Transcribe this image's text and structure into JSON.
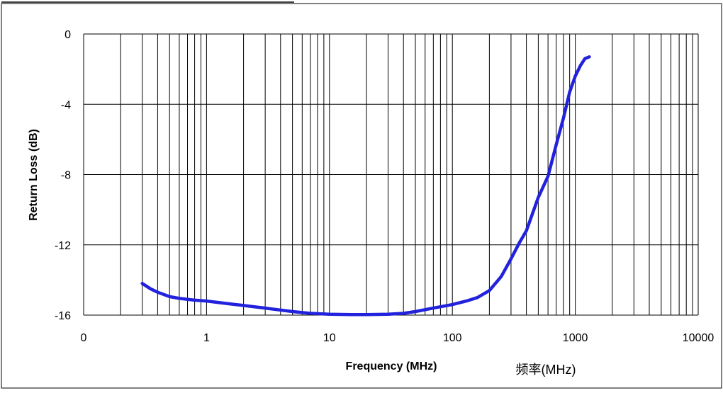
{
  "chart_data": {
    "type": "line",
    "title": "",
    "xlabel": "Frequency (MHz)",
    "ylabel": "Return Loss (dB)",
    "annotation": "频率(MHz)",
    "x_scale": "log",
    "xlim": [
      0.1,
      10000
    ],
    "ylim": [
      -16,
      0
    ],
    "x_tick_labels": [
      "0",
      "1",
      "10",
      "100",
      "1000",
      "10000"
    ],
    "y_tick_labels": [
      "0",
      "-4",
      "-8",
      "-12",
      "-16"
    ],
    "y_ticks": [
      0,
      -4,
      -8,
      -12,
      -16
    ],
    "grid": true,
    "legend": "none",
    "series": [
      {
        "color": "#2222dd",
        "x": [
          0.3,
          0.35,
          0.4,
          0.5,
          0.6,
          0.8,
          1,
          1.5,
          2,
          3,
          5,
          7,
          10,
          15,
          20,
          30,
          40,
          50,
          70,
          100,
          130,
          160,
          200,
          250,
          300,
          350,
          400,
          500,
          600,
          700,
          800,
          900,
          1000,
          1100,
          1200,
          1300
        ],
        "y": [
          -14.2,
          -14.5,
          -14.7,
          -14.95,
          -15.05,
          -15.15,
          -15.2,
          -15.35,
          -15.45,
          -15.6,
          -15.8,
          -15.9,
          -15.95,
          -15.97,
          -15.97,
          -15.95,
          -15.9,
          -15.8,
          -15.6,
          -15.4,
          -15.2,
          -15.0,
          -14.6,
          -13.8,
          -12.8,
          -11.9,
          -11.2,
          -9.3,
          -8.1,
          -6.3,
          -4.8,
          -3.3,
          -2.4,
          -1.8,
          -1.4,
          -1.3
        ]
      }
    ]
  }
}
